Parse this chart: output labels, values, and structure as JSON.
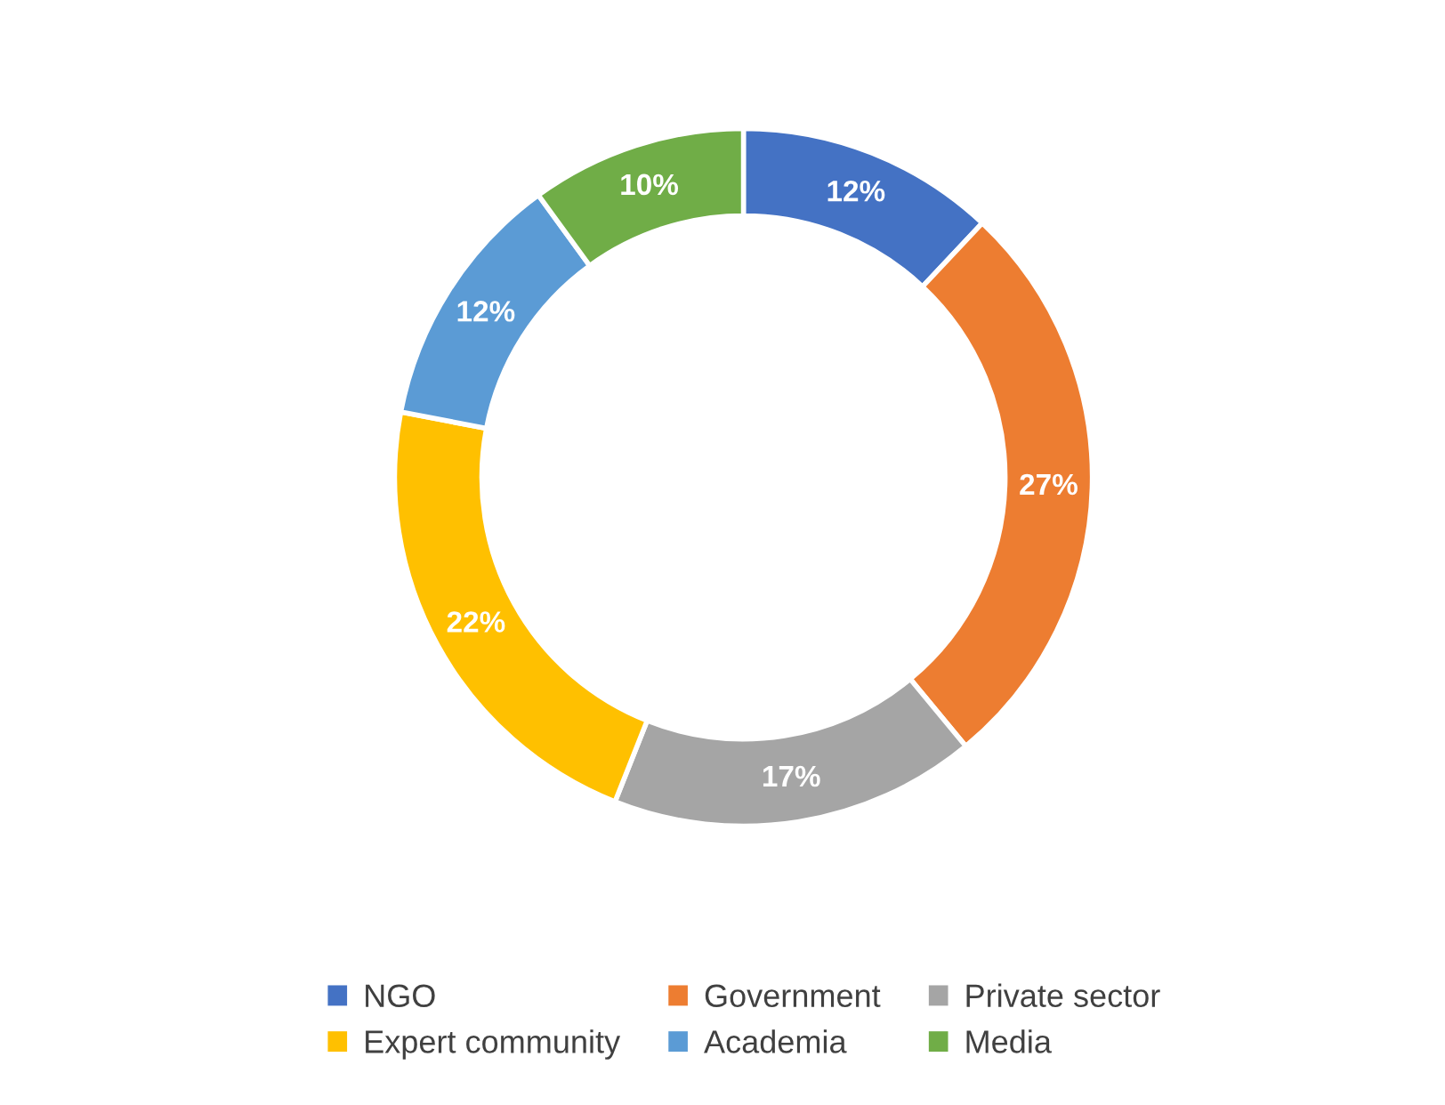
{
  "chart_data": {
    "type": "donut",
    "categories": [
      "NGO",
      "Government",
      "Private sector",
      "Expert community",
      "Academia",
      "Media"
    ],
    "values": [
      12,
      27,
      17,
      22,
      12,
      10
    ],
    "value_labels": [
      "12%",
      "27%",
      "17%",
      "22%",
      "12%",
      "10%"
    ],
    "colors": [
      "#4472c4",
      "#ed7d31",
      "#a5a5a5",
      "#ffc000",
      "#5b9bd5",
      "#70ad47"
    ],
    "legend": "bottom"
  }
}
